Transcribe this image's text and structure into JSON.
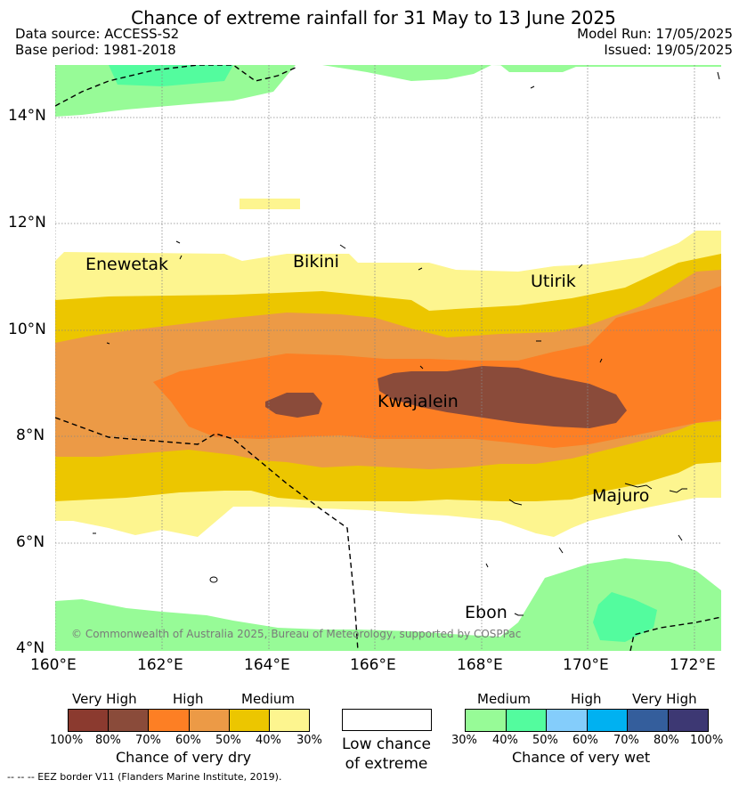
{
  "header": {
    "title": "Chance of extreme rainfall for 31 May to 13 June 2025",
    "data_source": "Data source: ACCESS-S2",
    "base_period": "Base period: 1981-2018",
    "model_run": "Model Run: 17/05/2025",
    "issued": "Issued: 19/05/2025"
  },
  "map": {
    "lat_labels": [
      "14°N",
      "12°N",
      "10°N",
      "8°N",
      "6°N",
      "4°N"
    ],
    "lon_labels": [
      "160°E",
      "162°E",
      "164°E",
      "166°E",
      "168°E",
      "170°E",
      "172°E"
    ],
    "places": [
      "Enewetak",
      "Bikini",
      "Utirik",
      "Kwajalein",
      "Majuro",
      "Ebon"
    ],
    "copyright": "© Commonwealth of Australia 2025, Bureau of Meteorology, supported by COSPPac"
  },
  "legend": {
    "dry": {
      "headings": [
        "Very High",
        "High",
        "Medium"
      ],
      "percentages": [
        "100%",
        "80%",
        "70%",
        "60%",
        "50%",
        "40%",
        "30%"
      ],
      "colors": [
        "#8b3a2f",
        "#8a4b3a",
        "#fd7f24",
        "#ec9a46",
        "#ecc600",
        "#fdf58f"
      ],
      "title": "Chance of very dry"
    },
    "low": {
      "line1": "Low chance",
      "line2": "of extreme"
    },
    "wet": {
      "headings": [
        "Medium",
        "High",
        "Very High"
      ],
      "percentages": [
        "30%",
        "40%",
        "50%",
        "60%",
        "70%",
        "80%",
        "100%"
      ],
      "colors": [
        "#97fb97",
        "#53fc9e",
        "#84cdfb",
        "#00b1f1",
        "#345e9c",
        "#3d3873"
      ],
      "title": "Chance of very wet"
    }
  },
  "footer": {
    "note": "--  --  -- EEZ border V11 (Flanders Marine Institute, 2019)."
  }
}
